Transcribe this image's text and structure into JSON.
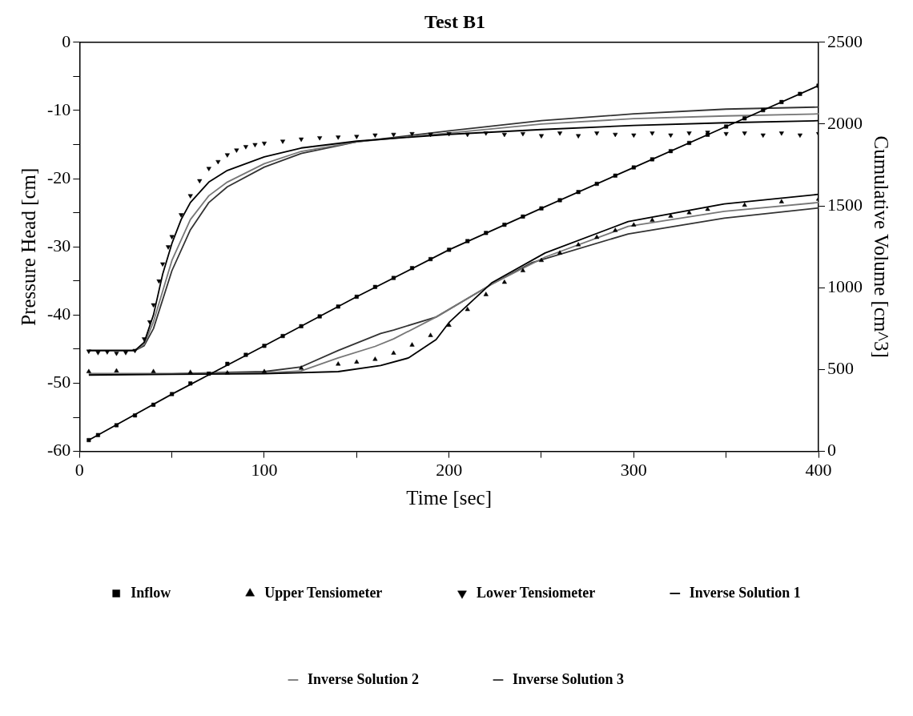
{
  "chart_data": {
    "type": "scatter",
    "title": "Test B1",
    "xlabel": "Time [sec]",
    "ylabel": "Pressure Head [cm]",
    "y2label": "Cumulative Volume [cm^3]",
    "xlim": [
      0,
      400
    ],
    "xticks": [
      0,
      {
        "value": 50,
        "label": null
      },
      100,
      {
        "value": 150,
        "label": null
      },
      200,
      {
        "value": 250,
        "label": null
      },
      300,
      {
        "value": 350,
        "label": null
      },
      400
    ],
    "ylim": [
      -60,
      0
    ],
    "yticks": [
      -60,
      {
        "value": -55,
        "label": null
      },
      -50,
      {
        "value": -45,
        "label": null
      },
      -40,
      {
        "value": -35,
        "label": null
      },
      -30,
      {
        "value": -25,
        "label": null
      },
      -20,
      {
        "value": -15,
        "label": null
      },
      -10,
      {
        "value": -5,
        "label": null
      },
      0
    ],
    "y2lim": [
      0,
      2500
    ],
    "y2ticks": [
      0,
      500,
      1000,
      1500,
      2000,
      2500
    ],
    "grid": false,
    "legend": "bottom",
    "series": [
      {
        "name": "Inverse Solution 1",
        "type": "line",
        "color": "#000000",
        "x": [
          5,
          30,
          35,
          40,
          45,
          50,
          55,
          60,
          70,
          80,
          100,
          120,
          150,
          200,
          250,
          300,
          350,
          400
        ],
        "values": [
          -45.2,
          -45.2,
          -44,
          -40,
          -34,
          -29.5,
          -26,
          -23.5,
          -20.5,
          -18.8,
          -16.8,
          -15.5,
          -14.5,
          -13.5,
          -12.8,
          -12.2,
          -11.8,
          -11.5
        ]
      },
      {
        "type": "line",
        "color": "#000000",
        "x": [
          5,
          50,
          100,
          140,
          163,
          178,
          193,
          200,
          223,
          252,
          297,
          349,
          400
        ],
        "values": [
          -48.8,
          -48.7,
          -48.6,
          -48.3,
          -47.4,
          -46.3,
          -43.6,
          -41.1,
          -35.3,
          -30.9,
          -26.3,
          -23.7,
          -22.3
        ]
      },
      {
        "type": "line",
        "color": "#000000",
        "axis": "y2",
        "x": [
          5,
          50,
          100,
          150,
          200,
          250,
          300,
          350,
          400
        ],
        "values": [
          69,
          350,
          645,
          945,
          1232,
          1485,
          1735,
          1985,
          2235
        ]
      },
      {
        "name": "Inverse Solution 2",
        "type": "line",
        "color": "#777777",
        "x": [
          5,
          30,
          35,
          40,
          50,
          60,
          70,
          80,
          100,
          120,
          150,
          200,
          250,
          300,
          350,
          400
        ],
        "values": [
          -45.2,
          -45.2,
          -44.3,
          -41,
          -32,
          -26,
          -22.5,
          -20.5,
          -17.8,
          -16,
          -14.6,
          -13.3,
          -12,
          -11.2,
          -10.8,
          -10.5
        ]
      },
      {
        "type": "line",
        "color": "#777777",
        "x": [
          5,
          50,
          100,
          120,
          140,
          160,
          170,
          193,
          223,
          252,
          297,
          349,
          400
        ],
        "values": [
          -48.6,
          -48.6,
          -48.5,
          -48.2,
          -46.3,
          -44.6,
          -43.5,
          -40.3,
          -35.5,
          -31.5,
          -27,
          -24.8,
          -23.5
        ]
      },
      {
        "name": "Inverse Solution 3",
        "type": "line",
        "color": "#333333",
        "x": [
          5,
          30,
          35,
          40,
          50,
          60,
          70,
          80,
          100,
          120,
          150,
          200,
          250,
          300,
          350,
          400
        ],
        "values": [
          -45.2,
          -45.2,
          -44.5,
          -42,
          -33.5,
          -27.5,
          -23.5,
          -21.2,
          -18.3,
          -16.3,
          -14.6,
          -13,
          -11.5,
          -10.5,
          -9.8,
          -9.5
        ]
      },
      {
        "type": "line",
        "color": "#333333",
        "x": [
          5,
          50,
          100,
          120,
          140,
          163,
          170,
          193,
          223,
          245,
          297,
          349,
          400
        ],
        "values": [
          -48.6,
          -48.6,
          -48.3,
          -47.6,
          -45.2,
          -42.7,
          -42.2,
          -40.3,
          -35.5,
          -32.3,
          -28.1,
          -25.8,
          -24.3
        ]
      },
      {
        "name": "Inflow",
        "type": "scatter",
        "marker": "square",
        "color": "#000000",
        "axis": "y2",
        "x": [
          5,
          10,
          20,
          30,
          40,
          50,
          60,
          70,
          80,
          90,
          100,
          110,
          120,
          130,
          140,
          150,
          160,
          170,
          180,
          190,
          200,
          210,
          220,
          230,
          240,
          250,
          260,
          270,
          280,
          290,
          300,
          310,
          320,
          330,
          340,
          350,
          360,
          370,
          380,
          390,
          400
        ],
        "values": [
          69,
          100,
          160,
          220,
          285,
          350,
          415,
          475,
          535,
          590,
          645,
          705,
          765,
          825,
          885,
          945,
          1005,
          1060,
          1120,
          1175,
          1232,
          1285,
          1335,
          1385,
          1435,
          1485,
          1535,
          1585,
          1635,
          1685,
          1735,
          1785,
          1835,
          1885,
          1935,
          1985,
          2035,
          2085,
          2135,
          2185,
          2235
        ]
      },
      {
        "name": "Upper Tensiometer",
        "type": "scatter",
        "marker": "triangle",
        "color": "#000000",
        "x": [
          5,
          20,
          40,
          60,
          80,
          100,
          120,
          140,
          150,
          160,
          170,
          180,
          190,
          200,
          210,
          220,
          230,
          240,
          250,
          260,
          270,
          280,
          290,
          300,
          310,
          320,
          330,
          340,
          360,
          380,
          400
        ],
        "values": [
          -48.3,
          -48.2,
          -48.3,
          -48.4,
          -48.5,
          -48.3,
          -47.8,
          -47.2,
          -46.9,
          -46.5,
          -45.6,
          -44.4,
          -43,
          -41.5,
          -39.2,
          -37,
          -35.2,
          -33.5,
          -32,
          -30.9,
          -29.7,
          -28.6,
          -27.6,
          -26.8,
          -26.1,
          -25.5,
          -25,
          -24.5,
          -23.9,
          -23.4,
          -23
        ]
      },
      {
        "name": "Lower Tensiometer",
        "type": "scatter",
        "marker": "triangle-down",
        "color": "#000000",
        "x": [
          5,
          10,
          15,
          20,
          25,
          30,
          35,
          38,
          40,
          43,
          45,
          48,
          50,
          55,
          60,
          65,
          70,
          75,
          80,
          85,
          90,
          95,
          100,
          110,
          120,
          130,
          140,
          150,
          160,
          170,
          180,
          190,
          200,
          210,
          220,
          230,
          240,
          250,
          260,
          270,
          280,
          290,
          300,
          310,
          320,
          330,
          340,
          350,
          360,
          370,
          380,
          390,
          400
        ],
        "values": [
          -45.3,
          -45.5,
          -45.4,
          -45.6,
          -45.5,
          -45.2,
          -43.5,
          -41,
          -38.5,
          -35,
          -32.5,
          -30,
          -28.5,
          -25.3,
          -22.5,
          -20.3,
          -18.5,
          -17.5,
          -16.5,
          -15.8,
          -15.3,
          -15,
          -14.8,
          -14.5,
          -14.2,
          -14,
          -13.9,
          -13.8,
          -13.6,
          -13.5,
          -13.4,
          -13.5,
          -13.4,
          -13.5,
          -13.3,
          -13.5,
          -13.4,
          -13.7,
          -13.3,
          -13.7,
          -13.3,
          -13.5,
          -13.6,
          -13.3,
          -13.6,
          -13.3,
          -13.2,
          -13.4,
          -13.3,
          -13.6,
          -13.3,
          -13.6,
          -13.4
        ]
      }
    ]
  }
}
